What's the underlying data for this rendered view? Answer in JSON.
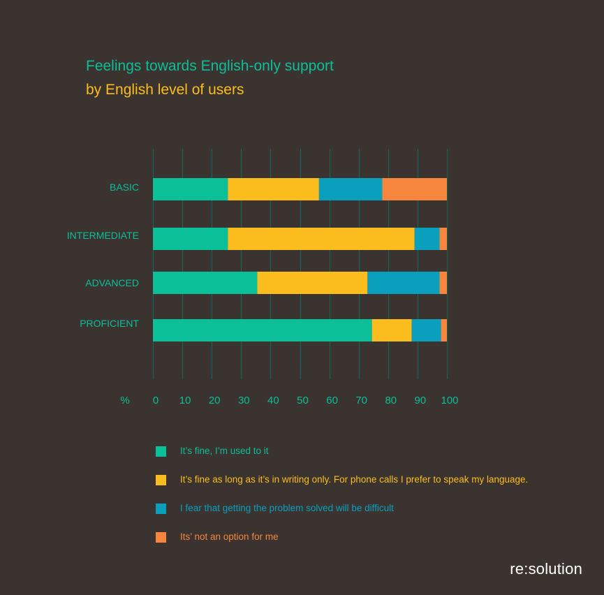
{
  "colors": {
    "background": "#3b3330",
    "grid": "#0f6b57",
    "text": "#0bbf98",
    "series": [
      "#0bbf98",
      "#fbbd1e",
      "#0aa0bd",
      "#f6853e"
    ]
  },
  "chart_data": {
    "type": "bar",
    "orientation": "horizontal",
    "stacked": true,
    "title": "Feelings towards English-only support",
    "subtitle": "by English level of users",
    "xlabel": "%",
    "ylabel": "",
    "xlim": [
      0,
      100
    ],
    "x_ticks": [
      "0",
      "10",
      "20",
      "30",
      "40",
      "50",
      "60",
      "70",
      "80",
      "90",
      "100"
    ],
    "grid": true,
    "categories": [
      "BASIC",
      "INTERMEDIATE",
      "ADVANCED",
      "PROFICIENT"
    ],
    "series": [
      {
        "name": "It’s fine, I’m used  to it",
        "color": "#0bbf98",
        "values": [
          25.5,
          25.5,
          35.5,
          74.5
        ]
      },
      {
        "name": "It’s fine as long as it’s in writing only. For phone calls I prefer to speak my language.",
        "color": "#fbbd1e",
        "values": [
          31,
          63.5,
          37.5,
          13.5
        ]
      },
      {
        "name": "I fear that getting the problem solved will be difficult",
        "color": "#0aa0bd",
        "values": [
          21.5,
          8.5,
          24.5,
          10
        ]
      },
      {
        "name": "Its’ not an option for me",
        "color": "#f6853e",
        "values": [
          22,
          2.5,
          2.5,
          2
        ]
      }
    ],
    "legend_position": "bottom"
  },
  "brand": "re:solution"
}
